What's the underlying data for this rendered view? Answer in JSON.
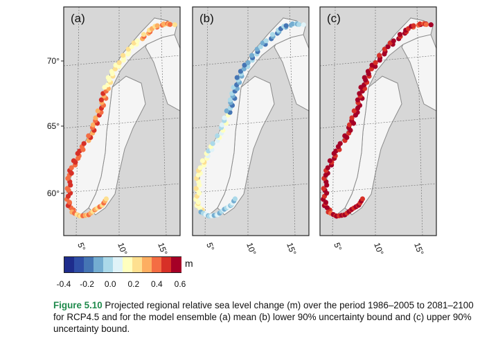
{
  "panels": [
    {
      "label": "(a)",
      "palette": "mean"
    },
    {
      "label": "(b)",
      "palette": "lower"
    },
    {
      "label": "(c)",
      "palette": "upper"
    }
  ],
  "lat_labels": [
    "70°",
    "65°",
    "60°"
  ],
  "lon_labels": [
    "5°",
    "10°",
    "15°"
  ],
  "colorbar": {
    "unit": "m",
    "ticks": [
      "-0.4",
      "-0.2",
      "0.0",
      "0.2",
      "0.4",
      "0.6"
    ],
    "colors": [
      "#1e2c8c",
      "#2f4ea6",
      "#4575b4",
      "#74add1",
      "#abd9e9",
      "#e0f3f8",
      "#ffffbf",
      "#fee090",
      "#fdae61",
      "#f46d43",
      "#d73027",
      "#a50026"
    ]
  },
  "colors": {
    "ocean": "#d7d7d7",
    "land": "#f5f5f5",
    "border": "#8a8a8a",
    "caption_label": "#1f8a4c"
  },
  "caption": {
    "label": "Figure 5.10",
    "text": " Projected regional relative sea level change (m) over the period 1986–2005 to 2081–2100 for RCP4.5 and for the model ensemble (a) mean (b) lower 90% uncertainty bound and (c) upper 90% uncertainty bound."
  }
}
